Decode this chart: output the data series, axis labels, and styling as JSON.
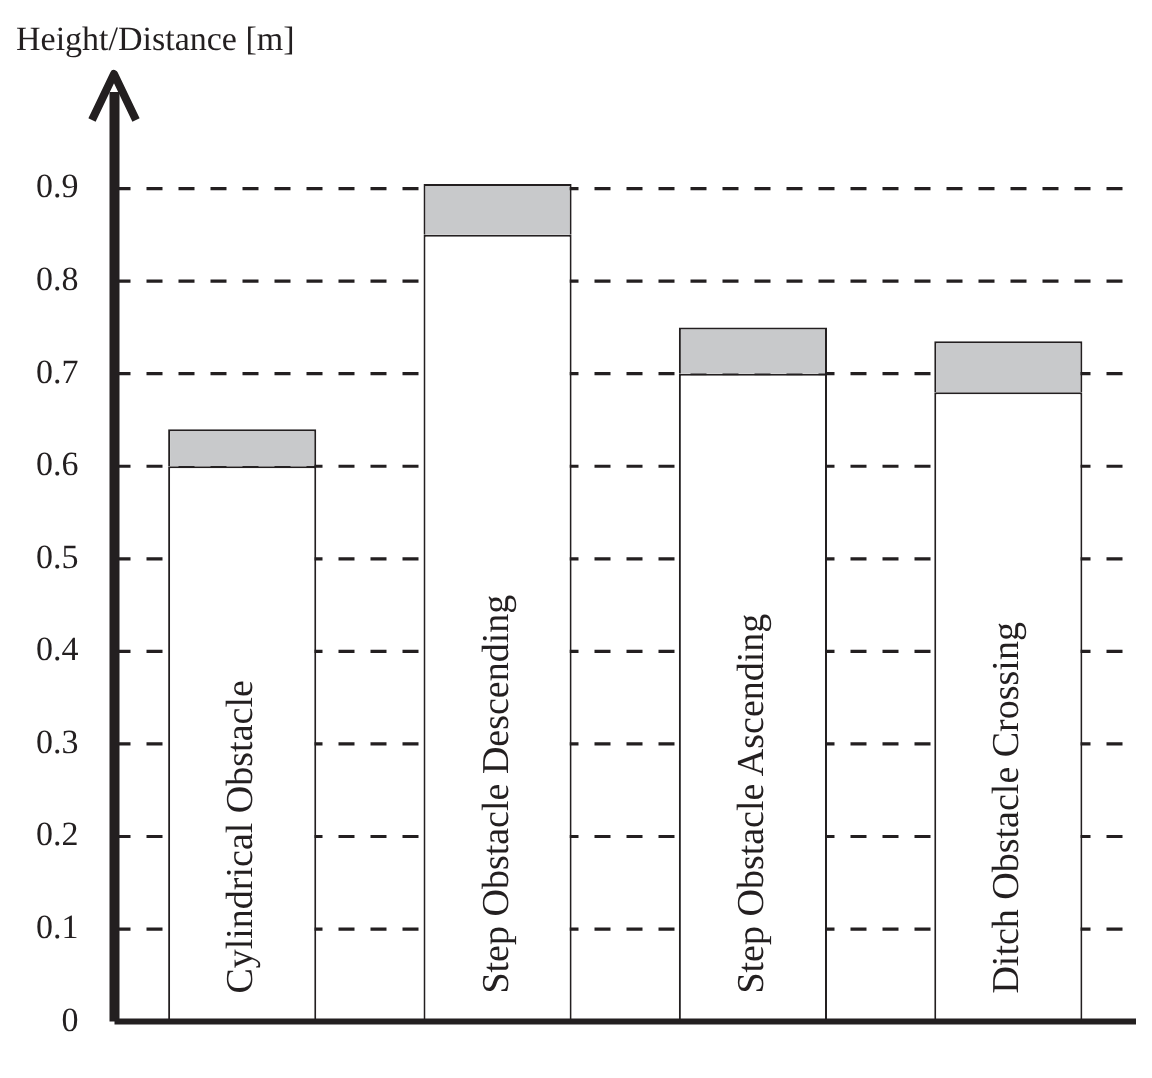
{
  "chart_data": {
    "type": "bar",
    "ylabel": "Height/Distance [m]",
    "categories": [
      "Cylindrical Obstacle",
      "Step Obstacle Descending",
      "Step Obstacle Ascending",
      "Ditch Obstacle Crossing"
    ],
    "series": [
      {
        "color": "#ffffff",
        "values": [
          0.6,
          0.85,
          0.7,
          0.68
        ]
      },
      {
        "color": "#c8c9cb",
        "values": [
          0.04,
          0.055,
          0.05,
          0.055
        ]
      }
    ],
    "stacked": true,
    "ylim": [
      0,
      1.0
    ],
    "yticks": [
      0,
      0.1,
      0.2,
      0.3,
      0.4,
      0.5,
      0.6,
      0.7,
      0.8,
      0.9
    ],
    "grid": "y",
    "line_style": "dashed",
    "tick_labels": "y",
    "legend": false
  }
}
